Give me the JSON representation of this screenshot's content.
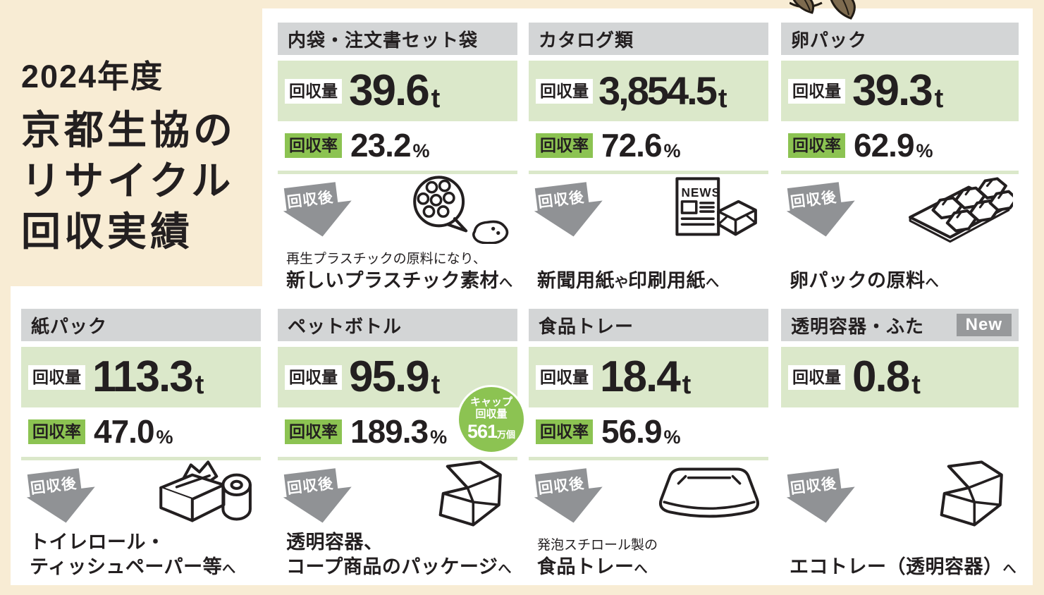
{
  "title": {
    "year": "2024年度",
    "lines": [
      "京都生協の",
      "リサイクル",
      "回収実績"
    ]
  },
  "labels": {
    "amount": "回収量",
    "rate": "回収率",
    "after": "回収後",
    "unit_t": "t",
    "unit_pct": "%"
  },
  "colors": {
    "background": "#f8ecd4",
    "panel": "#ffffff",
    "header_gray": "#d3d5d6",
    "green_light": "#dbe8ca",
    "green": "#8cc352",
    "arrow_gray": "#909295",
    "new_badge_gray": "#97999b",
    "text": "#231f20",
    "leaf_brown": "#7e6b4f"
  },
  "cards": [
    {
      "id": "uchibukuro",
      "name": "内袋・注文書セット袋",
      "amount": "39.6",
      "rate": "23.2",
      "icon": "plastic-pellets",
      "after_lines": [
        [
          {
            "t": "再生プラスチックの原料になり、",
            "k": "r"
          }
        ],
        [
          {
            "t": "新しいプラスチック素材",
            "k": "b"
          },
          {
            "t": "へ",
            "k": "s"
          }
        ]
      ]
    },
    {
      "id": "catalog",
      "name": "カタログ類",
      "amount": "3,854.5",
      "rate": "72.6",
      "icon": "newspaper-paper",
      "after_lines": [
        [
          {
            "t": "新聞用紙",
            "k": "b"
          },
          {
            "t": "や",
            "k": "s"
          },
          {
            "t": "印刷用紙",
            "k": "b"
          },
          {
            "t": "へ",
            "k": "s"
          }
        ]
      ]
    },
    {
      "id": "tamago",
      "name": "卵パック",
      "amount": "39.3",
      "rate": "62.9",
      "icon": "egg-carton",
      "after_lines": [
        [
          {
            "t": "卵パックの原料",
            "k": "b"
          },
          {
            "t": "へ",
            "k": "s"
          }
        ]
      ]
    },
    {
      "id": "kamipack",
      "name": "紙パック",
      "amount": "113.3",
      "rate": "47.0",
      "icon": "tissue-roll",
      "after_lines": [
        [
          {
            "t": "トイレロール・",
            "k": "b"
          }
        ],
        [
          {
            "t": "ティッシュペーパー等",
            "k": "b"
          },
          {
            "t": "へ",
            "k": "s"
          }
        ]
      ]
    },
    {
      "id": "petbottle",
      "name": "ペットボトル",
      "amount": "95.9",
      "rate": "189.3",
      "icon": "clamshell",
      "cap_badge": {
        "line1": "キャップ",
        "line2": "回収量",
        "value": "561",
        "unit": "万個"
      },
      "after_lines": [
        [
          {
            "t": "透明容器、",
            "k": "b"
          }
        ],
        [
          {
            "t": "コープ商品のパッケージ",
            "k": "b"
          },
          {
            "t": "へ",
            "k": "s"
          }
        ]
      ]
    },
    {
      "id": "shokuhintray",
      "name": "食品トレー",
      "amount": "18.4",
      "rate": "56.9",
      "icon": "food-tray",
      "after_lines": [
        [
          {
            "t": "発泡スチロール製の",
            "k": "r"
          }
        ],
        [
          {
            "t": "食品トレー",
            "k": "b"
          },
          {
            "t": "へ",
            "k": "s"
          }
        ]
      ]
    },
    {
      "id": "toumei",
      "name": "透明容器・ふた",
      "new_badge": "New",
      "amount": "0.8",
      "rate": null,
      "icon": "clamshell",
      "after_lines": [
        [
          {
            "t": "エコトレー（透明容器）",
            "k": "b"
          },
          {
            "t": "へ",
            "k": "s"
          }
        ]
      ]
    }
  ]
}
